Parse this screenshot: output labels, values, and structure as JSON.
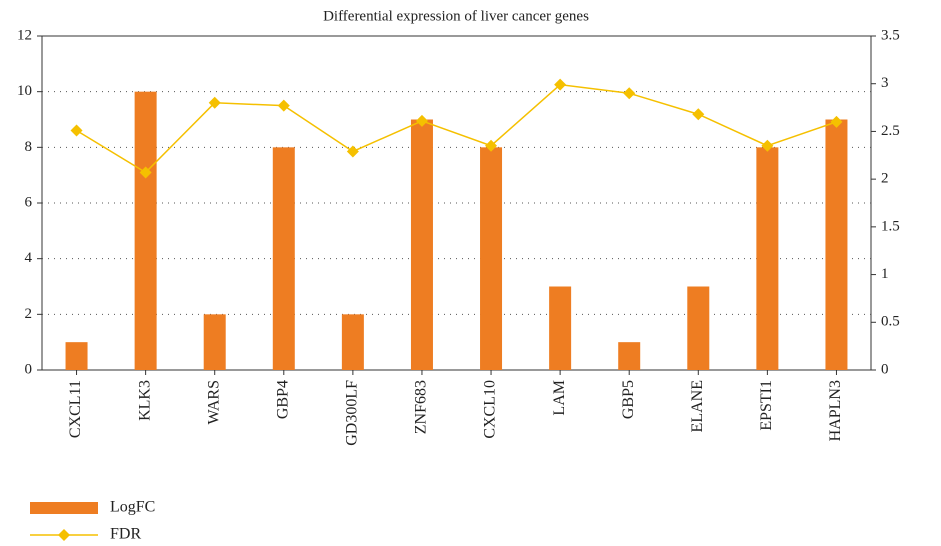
{
  "chart_data": {
    "type": "combo",
    "title": "Differential expression of liver cancer genes",
    "categories": [
      "CXCL11",
      "KLK3",
      "WARS",
      "GBP4",
      "GD300LF",
      "ZNF683",
      "CXCL10",
      "LAM",
      "GBP5",
      "ELANE",
      "EPSTI1",
      "HAPLN3"
    ],
    "series": [
      {
        "name": "LogFC",
        "type": "bar",
        "axis": "y",
        "color": "#ee7d22",
        "values": [
          1,
          10,
          2,
          8,
          2,
          9,
          8,
          3,
          1,
          3,
          8,
          9
        ]
      },
      {
        "name": "FDR",
        "type": "line",
        "axis": "y2",
        "color": "#f5c000",
        "values": [
          2.51,
          2.07,
          2.8,
          2.77,
          2.29,
          2.61,
          2.35,
          2.99,
          2.9,
          2.68,
          2.35,
          2.6
        ]
      }
    ],
    "ylim": [
      0,
      12
    ],
    "yticks": [
      0,
      2,
      4,
      6,
      8,
      10,
      12
    ],
    "y2lim": [
      0,
      3.5
    ],
    "y2ticks": [
      0,
      0.5,
      1,
      1.5,
      2,
      2.5,
      3,
      3.5
    ],
    "grid": true
  }
}
